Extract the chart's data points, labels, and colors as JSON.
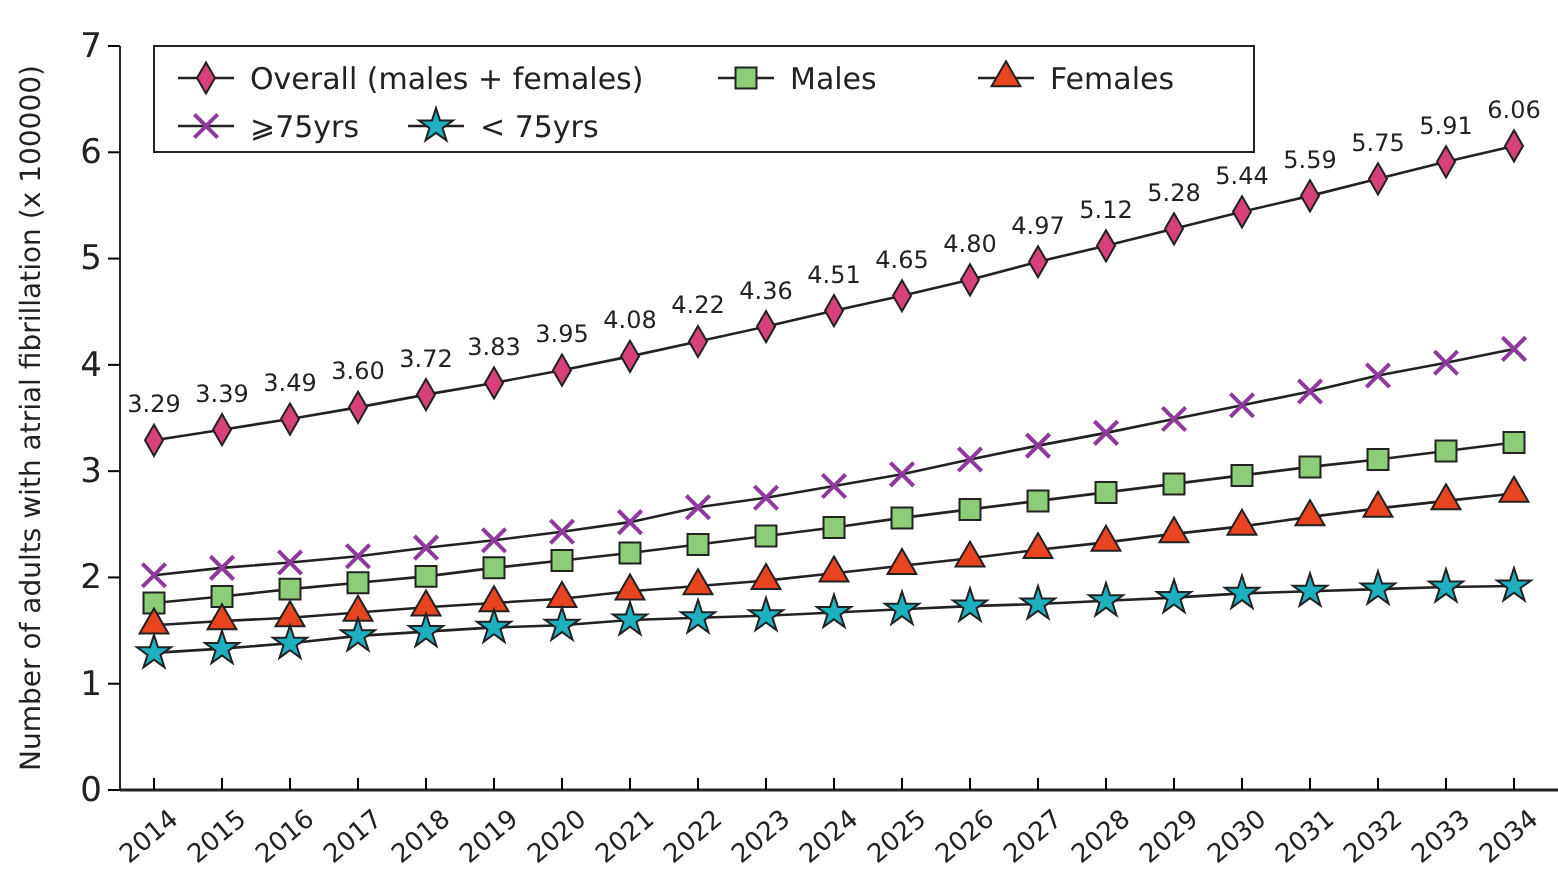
{
  "chart_data": {
    "type": "line",
    "ylabel": "Number of adults with atrial fibrillation (x 100000)",
    "categories": [
      "2014",
      "2015",
      "2016",
      "2017",
      "2018",
      "2019",
      "2020",
      "2021",
      "2022",
      "2023",
      "2024",
      "2025",
      "2026",
      "2027",
      "2028",
      "2029",
      "2030",
      "2031",
      "2032",
      "2033",
      "2034"
    ],
    "ylim": [
      0,
      7
    ],
    "yticks": [
      0,
      1,
      2,
      3,
      4,
      5,
      6,
      7
    ],
    "grid": false,
    "legend": "top left",
    "series": [
      {
        "name": "Overall (males + females)",
        "color": "#d6417a",
        "marker": "diamond",
        "values": [
          3.29,
          3.39,
          3.49,
          3.6,
          3.72,
          3.83,
          3.95,
          4.08,
          4.22,
          4.36,
          4.51,
          4.65,
          4.8,
          4.97,
          5.12,
          5.28,
          5.44,
          5.59,
          5.75,
          5.91,
          6.06
        ],
        "value_labels": [
          "3.29",
          "3.39",
          "3.49",
          "3.60",
          "3.72",
          "3.83",
          "3.95",
          "4.08",
          "4.22",
          "4.36",
          "4.51",
          "4.65",
          "4.80",
          "4.97",
          "5.12",
          "5.28",
          "5.44",
          "5.59",
          "5.75",
          "5.91",
          "6.06"
        ]
      },
      {
        "name": "Males",
        "color": "#8dcd77",
        "marker": "square",
        "values": [
          1.76,
          1.82,
          1.89,
          1.95,
          2.01,
          2.09,
          2.16,
          2.23,
          2.31,
          2.39,
          2.47,
          2.56,
          2.64,
          2.72,
          2.8,
          2.88,
          2.96,
          3.04,
          3.11,
          3.19,
          3.27
        ]
      },
      {
        "name": "Females",
        "color": "#e8441f",
        "marker": "triangle",
        "values": [
          1.55,
          1.59,
          1.62,
          1.67,
          1.72,
          1.76,
          1.8,
          1.87,
          1.92,
          1.97,
          2.04,
          2.11,
          2.18,
          2.26,
          2.33,
          2.41,
          2.48,
          2.57,
          2.65,
          2.72,
          2.79
        ]
      },
      {
        "name": "⩾75yrs",
        "color": "#8e3a9c",
        "marker": "cross",
        "values": [
          2.02,
          2.09,
          2.14,
          2.2,
          2.28,
          2.35,
          2.43,
          2.52,
          2.66,
          2.75,
          2.86,
          2.97,
          3.11,
          3.24,
          3.36,
          3.49,
          3.62,
          3.75,
          3.9,
          4.02,
          4.15
        ]
      },
      {
        "name": "< 75yrs",
        "color": "#1fb0c0",
        "marker": "star",
        "values": [
          1.29,
          1.33,
          1.38,
          1.45,
          1.49,
          1.53,
          1.55,
          1.6,
          1.62,
          1.64,
          1.67,
          1.7,
          1.73,
          1.75,
          1.78,
          1.81,
          1.85,
          1.87,
          1.89,
          1.91,
          1.92
        ]
      }
    ]
  }
}
